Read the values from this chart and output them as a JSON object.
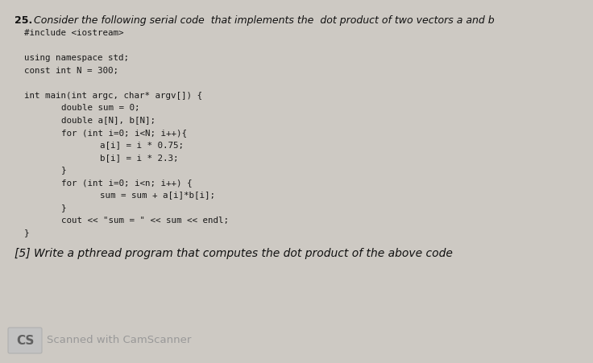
{
  "bg_color": "#cdc9c3",
  "title_number": "25.",
  "title_text": "Consider the following serial code  that implements the  dot product of two vectors a and b",
  "title_fontsize": 9.0,
  "code_lines": [
    "#include <iostream>",
    "",
    "using namespace std;",
    "const int N = 300;",
    "",
    "int main(int argc, char* argv[]) {",
    "    double sum = 0;",
    "    double a[N], b[N];",
    "    for (int i=0; i<N; i++){",
    "        a[i] = i * 0.75;",
    "        b[i] = i * 2.3;",
    "    }",
    "    for (int i=0; i<n; i++) {",
    "        sum = sum + a[i]*b[i];",
    "    }",
    "    cout << \"sum = \" << sum << endl;",
    "}"
  ],
  "code_fontsize": 7.8,
  "code_color": "#1a1a1a",
  "question_text": "[5] Write a pthread program that computes the dot product of the above code",
  "question_fontsize": 10.0,
  "footer_cs_text": "CS",
  "footer_body_text": "Scanned with CamScanner",
  "footer_fontsize": 9.5,
  "footer_box_color": "#b5b5b5",
  "footer_text_color": "#999999"
}
